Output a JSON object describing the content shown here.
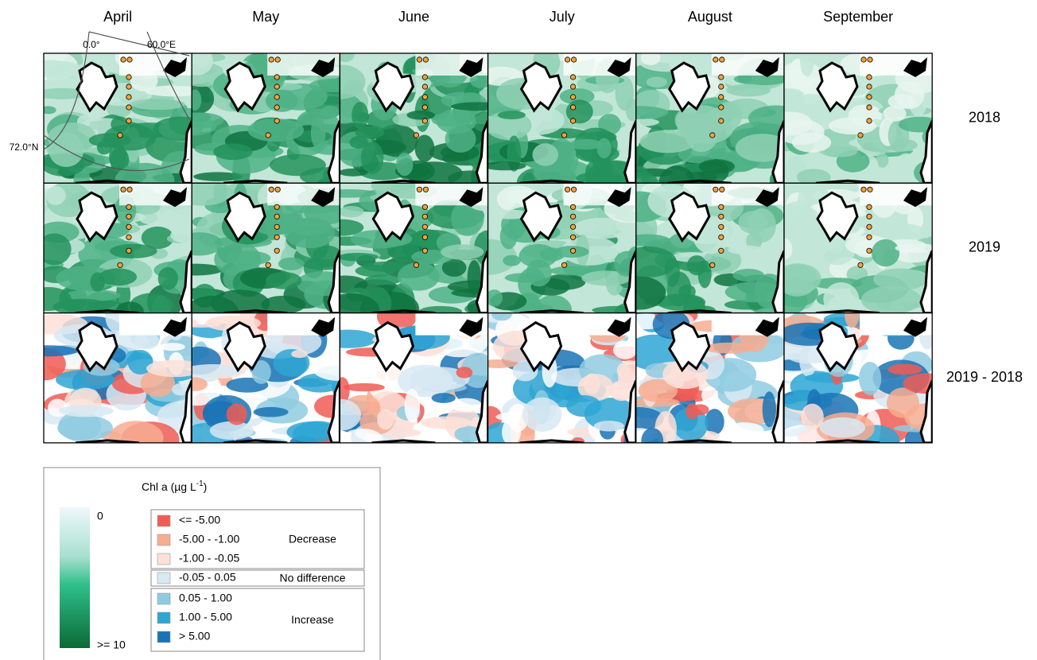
{
  "header": {
    "months": [
      "April",
      "May",
      "June",
      "July",
      "August",
      "September"
    ]
  },
  "rows": [
    "2018",
    "2019",
    "2019 - 2018"
  ],
  "graticule": {
    "lon_labels": [
      "0.0°",
      "60.0°E"
    ],
    "lat_label": "72.0°N"
  },
  "legend": {
    "title": "Chl a (µg L",
    "title_superscript": "-1",
    "title_end": ")",
    "gradient": {
      "top_label": "0",
      "bottom_label": ">= 10"
    },
    "groups": [
      {
        "name": "Decrease",
        "classes": [
          {
            "label": "<= -5.00",
            "color": "#f05c55"
          },
          {
            "label": "-5.00 - -1.00",
            "color": "#f7ad90"
          },
          {
            "label": "-1.00 - -0.05",
            "color": "#fde0d8"
          }
        ]
      },
      {
        "name": "No difference",
        "classes": [
          {
            "label": "-0.05 - 0.05",
            "color": "#d8e9f3"
          }
        ]
      },
      {
        "name": "Increase",
        "classes": [
          {
            "label": "0.05 - 1.00",
            "color": "#8fcbe0"
          },
          {
            "label": "1.00 - 5.00",
            "color": "#2ea6d3"
          },
          {
            "label": "> 5.00",
            "color": "#1a73b5"
          }
        ]
      }
    ]
  }
}
